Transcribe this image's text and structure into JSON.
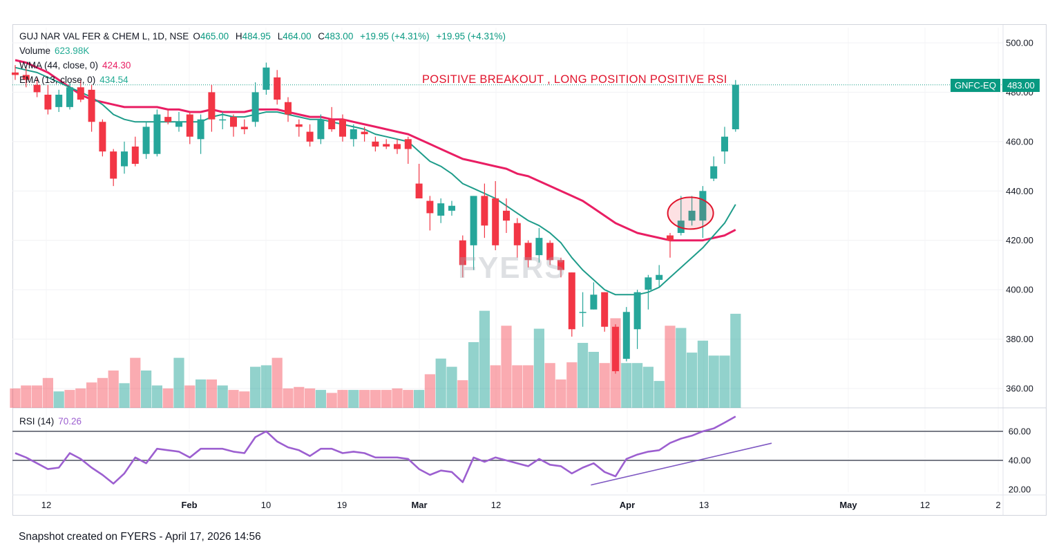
{
  "header": {
    "symbol_line": "GUJ NAR VAL FER & CHEM L, 1D, NSE",
    "open_label": "O",
    "open": "465.00",
    "high_label": "H",
    "high": "484.95",
    "low_label": "L",
    "low": "464.00",
    "close_label": "C",
    "close": "483.00",
    "change": "+19.95 (+4.31%)",
    "change2": "+19.95 (+4.31%)"
  },
  "indicators": {
    "volume_label": "Volume",
    "volume_value": "623.98K",
    "wma_label": "WMA (44, close, 0)",
    "wma_value": "424.30",
    "ema_label": "EMA (13, close, 0)",
    "ema_value": "434.54",
    "rsi_label": "RSI (14)",
    "rsi_value": "70.26"
  },
  "annotation": "POSITIVE BREAKOUT , LONG POSITION POSITIVE RSI",
  "price_tag": {
    "symbol": "GNFC-EQ",
    "value": "483.00"
  },
  "watermark": "FYERS",
  "footer": "Snapshot created on FYERS - April 17, 2026 14:56",
  "colors": {
    "up": "#26a69a",
    "down": "#f23645",
    "wma": "#e91e63",
    "ema": "#1e9c8a",
    "rsi": "#9c5fd0",
    "trendline": "#7e57c2"
  },
  "chart_data": [
    {
      "type": "candlestick",
      "title": "GUJ NAR VAL FER & CHEM L, 1D, NSE",
      "y_ticks": [
        "500.00",
        "480.00",
        "460.00",
        "440.00",
        "420.00",
        "400.00",
        "380.00",
        "360.00"
      ],
      "ylim": [
        353,
        504
      ],
      "x_ticks": [
        "12",
        "Feb",
        "10",
        "19",
        "Mar",
        "12",
        "Apr",
        "13",
        "May",
        "12",
        "2"
      ],
      "candles": [
        {
          "o": 488,
          "h": 491,
          "l": 485,
          "c": 487
        },
        {
          "o": 487,
          "h": 490,
          "l": 482,
          "c": 485
        },
        {
          "o": 483,
          "h": 486,
          "l": 478,
          "c": 480
        },
        {
          "o": 479,
          "h": 483,
          "l": 471,
          "c": 473
        },
        {
          "o": 474,
          "h": 481,
          "l": 472,
          "c": 479
        },
        {
          "o": 474,
          "h": 484,
          "l": 473,
          "c": 482
        },
        {
          "o": 482,
          "h": 485,
          "l": 476,
          "c": 477
        },
        {
          "o": 481,
          "h": 483,
          "l": 464,
          "c": 468
        },
        {
          "o": 468,
          "h": 469,
          "l": 454,
          "c": 456
        },
        {
          "o": 456,
          "h": 457,
          "l": 442,
          "c": 445
        },
        {
          "o": 450,
          "h": 460,
          "l": 447,
          "c": 456
        },
        {
          "o": 458,
          "h": 462,
          "l": 450,
          "c": 451
        },
        {
          "o": 455,
          "h": 468,
          "l": 453,
          "c": 466
        },
        {
          "o": 455,
          "h": 473,
          "l": 454,
          "c": 471
        },
        {
          "o": 470,
          "h": 473,
          "l": 467,
          "c": 468
        },
        {
          "o": 466,
          "h": 472,
          "l": 464,
          "c": 468
        },
        {
          "o": 471,
          "h": 472,
          "l": 459,
          "c": 462
        },
        {
          "o": 461,
          "h": 471,
          "l": 455,
          "c": 469
        },
        {
          "o": 480,
          "h": 483,
          "l": 464,
          "c": 469
        },
        {
          "o": 469,
          "h": 472,
          "l": 465,
          "c": 469
        },
        {
          "o": 470,
          "h": 471,
          "l": 462,
          "c": 466
        },
        {
          "o": 466,
          "h": 469,
          "l": 463,
          "c": 465
        },
        {
          "o": 468,
          "h": 484,
          "l": 466,
          "c": 480
        },
        {
          "o": 481,
          "h": 492,
          "l": 479,
          "c": 490
        },
        {
          "o": 486,
          "h": 489,
          "l": 475,
          "c": 477
        },
        {
          "o": 476,
          "h": 478,
          "l": 468,
          "c": 471
        },
        {
          "o": 467,
          "h": 469,
          "l": 462,
          "c": 466
        },
        {
          "o": 464,
          "h": 467,
          "l": 458,
          "c": 460
        },
        {
          "o": 461,
          "h": 471,
          "l": 459,
          "c": 469
        },
        {
          "o": 469,
          "h": 474,
          "l": 464,
          "c": 465
        },
        {
          "o": 469,
          "h": 471,
          "l": 460,
          "c": 462
        },
        {
          "o": 461,
          "h": 467,
          "l": 458,
          "c": 465
        },
        {
          "o": 464,
          "h": 466,
          "l": 460,
          "c": 463
        },
        {
          "o": 460,
          "h": 462,
          "l": 456,
          "c": 458
        },
        {
          "o": 459,
          "h": 461,
          "l": 457,
          "c": 458
        },
        {
          "o": 459,
          "h": 461,
          "l": 455,
          "c": 457
        },
        {
          "o": 461,
          "h": 462,
          "l": 451,
          "c": 457
        },
        {
          "o": 443,
          "h": 451,
          "l": 437,
          "c": 437
        },
        {
          "o": 436,
          "h": 438,
          "l": 424,
          "c": 431
        },
        {
          "o": 430,
          "h": 437,
          "l": 427,
          "c": 435
        },
        {
          "o": 432,
          "h": 436,
          "l": 430,
          "c": 434
        },
        {
          "o": 420,
          "h": 422,
          "l": 405,
          "c": 410
        },
        {
          "o": 418,
          "h": 438,
          "l": 408,
          "c": 438
        },
        {
          "o": 438,
          "h": 443,
          "l": 421,
          "c": 426
        },
        {
          "o": 437,
          "h": 444,
          "l": 416,
          "c": 418
        },
        {
          "o": 432,
          "h": 437,
          "l": 423,
          "c": 428
        },
        {
          "o": 427,
          "h": 429,
          "l": 413,
          "c": 418
        },
        {
          "o": 419,
          "h": 420,
          "l": 409,
          "c": 412
        },
        {
          "o": 414,
          "h": 425,
          "l": 411,
          "c": 421
        },
        {
          "o": 419,
          "h": 420,
          "l": 410,
          "c": 412
        },
        {
          "o": 412,
          "h": 413,
          "l": 405,
          "c": 408
        },
        {
          "o": 407,
          "h": 407,
          "l": 381,
          "c": 384
        },
        {
          "o": 391,
          "h": 399,
          "l": 385,
          "c": 391
        },
        {
          "o": 392,
          "h": 403,
          "l": 392,
          "c": 398
        },
        {
          "o": 399,
          "h": 399,
          "l": 383,
          "c": 385
        },
        {
          "o": 385,
          "h": 386,
          "l": 366,
          "c": 367
        },
        {
          "o": 372,
          "h": 393,
          "l": 371,
          "c": 391
        },
        {
          "o": 384,
          "h": 400,
          "l": 376,
          "c": 399
        },
        {
          "o": 400,
          "h": 406,
          "l": 392,
          "c": 405
        },
        {
          "o": 404,
          "h": 410,
          "l": 401,
          "c": 406
        },
        {
          "o": 422,
          "h": 423,
          "l": 413,
          "c": 420
        },
        {
          "o": 423,
          "h": 438,
          "l": 422,
          "c": 428
        },
        {
          "o": 428,
          "h": 438,
          "l": 426,
          "c": 432
        },
        {
          "o": 428,
          "h": 442,
          "l": 421,
          "c": 440
        },
        {
          "o": 445,
          "h": 454,
          "l": 444,
          "c": 450
        },
        {
          "o": 456,
          "h": 466,
          "l": 451,
          "c": 462
        },
        {
          "o": 465,
          "h": 484.95,
          "l": 464,
          "c": 483
        }
      ],
      "wma_44": [
        493,
        492,
        490,
        488,
        485,
        482,
        479,
        477,
        476,
        475,
        474,
        474,
        474,
        474,
        473,
        473,
        472,
        472,
        473,
        472,
        472,
        472,
        473,
        473,
        473,
        472,
        471,
        470,
        470,
        469,
        469,
        468,
        467,
        466,
        465,
        464,
        463,
        461,
        459,
        457,
        455,
        453,
        452,
        451,
        450,
        449,
        447,
        446,
        444,
        442,
        440,
        438,
        436,
        433,
        430,
        427,
        425,
        423,
        422,
        421,
        420,
        420,
        420,
        420,
        421,
        422,
        424.3
      ],
      "ema_13": [
        490,
        489,
        488,
        486,
        484,
        482,
        480,
        478,
        475,
        471,
        469,
        468,
        468,
        468,
        468,
        468,
        468,
        468,
        470,
        471,
        470,
        470,
        471,
        472,
        472,
        471,
        470,
        469,
        469,
        468,
        467,
        466,
        465,
        463,
        462,
        461,
        460,
        456,
        452,
        450,
        447,
        443,
        441,
        439,
        437,
        434,
        431,
        428,
        426,
        423,
        419,
        413,
        408,
        404,
        400,
        398,
        398,
        398,
        399,
        401,
        405,
        409,
        413,
        417,
        422,
        427,
        434.54
      ]
    },
    {
      "type": "bar",
      "title": "Volume",
      "unit": "relative",
      "values": [
        0.26,
        0.3,
        0.3,
        0.4,
        0.22,
        0.24,
        0.26,
        0.34,
        0.4,
        0.5,
        0.33,
        0.67,
        0.5,
        0.3,
        0.26,
        0.67,
        0.3,
        0.38,
        0.38,
        0.3,
        0.24,
        0.22,
        0.55,
        0.57,
        0.67,
        0.26,
        0.28,
        0.26,
        0.24,
        0.2,
        0.24,
        0.24,
        0.24,
        0.24,
        0.24,
        0.26,
        0.24,
        0.24,
        0.45,
        0.66,
        0.55,
        0.37,
        0.88,
        1.3,
        0.57,
        1.1,
        0.57,
        0.57,
        1.06,
        0.6,
        0.38,
        0.61,
        0.87,
        0.75,
        0.6,
        1.2,
        0.6,
        0.6,
        0.55,
        0.36,
        1.1,
        1.07,
        0.74,
        0.9,
        0.7,
        0.7,
        1.26
      ],
      "directions": [
        "d",
        "d",
        "d",
        "d",
        "u",
        "d",
        "d",
        "d",
        "d",
        "d",
        "u",
        "d",
        "u",
        "u",
        "d",
        "u",
        "d",
        "u",
        "d",
        "u",
        "d",
        "d",
        "u",
        "u",
        "d",
        "d",
        "d",
        "d",
        "u",
        "d",
        "d",
        "u",
        "d",
        "d",
        "d",
        "d",
        "d",
        "u",
        "d",
        "u",
        "u",
        "d",
        "u",
        "u",
        "d",
        "d",
        "d",
        "d",
        "u",
        "d",
        "d",
        "d",
        "u",
        "u",
        "d",
        "d",
        "u",
        "u",
        "u",
        "u",
        "d",
        "u",
        "u",
        "u",
        "u",
        "u",
        "u"
      ]
    },
    {
      "type": "line",
      "title": "RSI (14)",
      "y_ticks": [
        "60.00",
        "40.00",
        "20.00"
      ],
      "ylim": [
        19,
        70
      ],
      "levels": [
        60,
        40
      ],
      "values": [
        45,
        42,
        38,
        34,
        35,
        45,
        41,
        35,
        30,
        24,
        31,
        42,
        38,
        48,
        47,
        46,
        42,
        48,
        48,
        48,
        46,
        45,
        56,
        60,
        53,
        49,
        47,
        43,
        48,
        48,
        45,
        46,
        45,
        42,
        42,
        42,
        41,
        34,
        30,
        33,
        32,
        25,
        42,
        39,
        42,
        40,
        38,
        36,
        41,
        37,
        36,
        31,
        35,
        38,
        32,
        29,
        41,
        44,
        46,
        47,
        52,
        55,
        57,
        60,
        62,
        66,
        70.26
      ],
      "trendline": [
        [
          53,
          24
        ],
        [
          70,
          53
        ]
      ]
    }
  ]
}
